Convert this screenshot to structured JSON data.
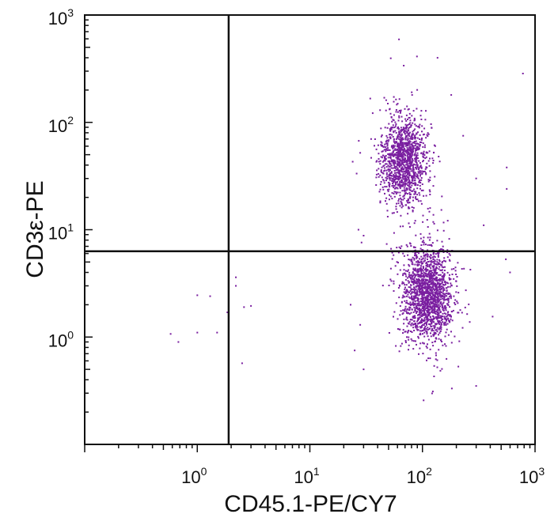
{
  "chart_data": {
    "type": "scatter",
    "title": "",
    "xlabel": "CD45.1-PE/CY7",
    "ylabel": "CD3ε-PE",
    "xscale": "log",
    "yscale": "log",
    "xlim": [
      0.1,
      1000
    ],
    "ylim": [
      0.1,
      1000
    ],
    "x_ticks": [
      {
        "base": "10",
        "exp": "0",
        "value": 1
      },
      {
        "base": "10",
        "exp": "1",
        "value": 10
      },
      {
        "base": "10",
        "exp": "2",
        "value": 100
      },
      {
        "base": "10",
        "exp": "3",
        "value": 1000
      }
    ],
    "y_ticks": [
      {
        "base": "10",
        "exp": "0",
        "value": 1
      },
      {
        "base": "10",
        "exp": "1",
        "value": 10
      },
      {
        "base": "10",
        "exp": "2",
        "value": 100
      },
      {
        "base": "10",
        "exp": "3",
        "value": 1000
      }
    ],
    "quadrant_gates": {
      "x": 1.9,
      "y": 6.3
    },
    "point_color": "#7a1fa0",
    "clusters": [
      {
        "center_x": 68,
        "center_y": 45,
        "spread_log_x": 0.1,
        "spread_log_y": 0.2,
        "count": 1300
      },
      {
        "center_x": 110,
        "center_y": 2.5,
        "spread_log_x": 0.11,
        "spread_log_y": 0.22,
        "count": 1700
      }
    ],
    "outliers": [
      [
        0.58,
        1.07
      ],
      [
        0.68,
        0.9
      ],
      [
        1.0,
        2.45
      ],
      [
        1.0,
        1.1
      ],
      [
        1.3,
        2.4
      ],
      [
        1.5,
        1.1
      ],
      [
        1.85,
        1.7
      ],
      [
        2.2,
        3.6
      ],
      [
        2.2,
        3.0
      ],
      [
        2.6,
        1.9
      ],
      [
        3.0,
        1.95
      ],
      [
        2.5,
        0.57
      ],
      [
        23,
        2.0
      ],
      [
        25,
        0.75
      ],
      [
        27,
        10
      ],
      [
        30,
        8.8
      ],
      [
        24,
        43
      ],
      [
        28,
        52
      ],
      [
        190,
        2.4
      ],
      [
        420,
        1.55
      ],
      [
        560,
        38
      ],
      [
        550,
        5.3
      ],
      [
        600,
        4.0
      ],
      [
        780,
        285
      ],
      [
        180,
        180
      ],
      [
        230,
        75
      ],
      [
        300,
        30
      ],
      [
        35,
        70
      ],
      [
        42,
        130
      ],
      [
        560,
        24
      ],
      [
        350,
        11
      ],
      [
        28,
        1.3
      ],
      [
        30,
        0.5
      ],
      [
        300,
        0.35
      ]
    ]
  }
}
